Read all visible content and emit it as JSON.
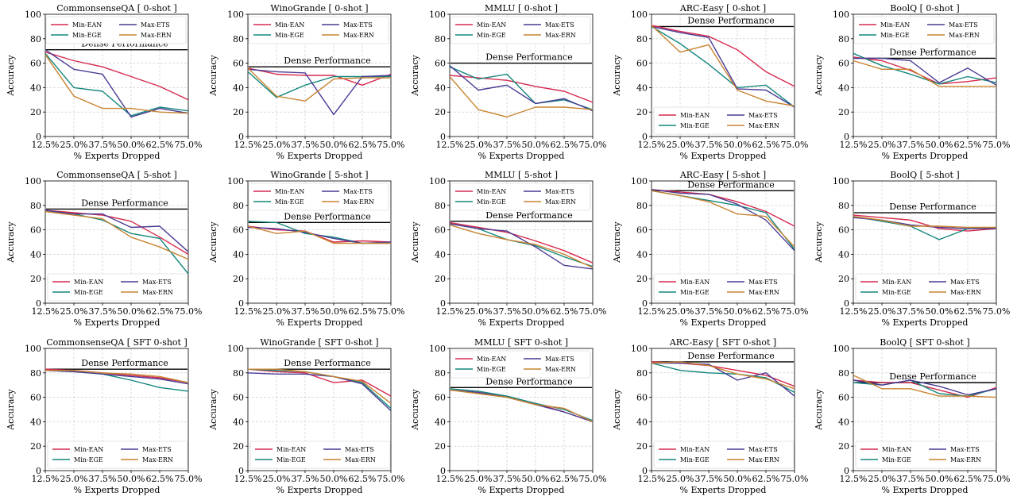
{
  "figure": {
    "x_tick_labels": [
      "12.5%",
      "25.0%",
      "37.5%",
      "50.0%",
      "62.5%",
      "75.0%"
    ],
    "xlabel": "% Experts Dropped",
    "ylabel": "Accuracy",
    "dense_label": "Dense Performance",
    "colors": {
      "Min-EAN": "#d62a4e",
      "Min-EGE": "#13877c",
      "Max-ETS": "#4a3a94",
      "Max-ERN": "#c98431",
      "dense": "#000000"
    }
  },
  "chart_data": [
    {
      "type": "line",
      "title": "CommonsenseQA [ 0-shot ]",
      "ylim": [
        0,
        100
      ],
      "dense": 71,
      "legend": "top-right",
      "grid": true,
      "categories": [
        "12.5%",
        "25.0%",
        "37.5%",
        "50.0%",
        "62.5%",
        "75.0%"
      ],
      "series": [
        {
          "name": "Min-EAN",
          "values": [
            69,
            62,
            57,
            49,
            41,
            30
          ]
        },
        {
          "name": "Min-EGE",
          "values": [
            68,
            40,
            37,
            17,
            24,
            21
          ]
        },
        {
          "name": "Max-ETS",
          "values": [
            71,
            55,
            51,
            16,
            23,
            19
          ]
        },
        {
          "name": "Max-ERN",
          "values": [
            67,
            33,
            23,
            23,
            20,
            19
          ]
        }
      ]
    },
    {
      "type": "line",
      "title": "WinoGrande [ 0-shot ]",
      "ylim": [
        0,
        100
      ],
      "dense": 57,
      "legend": "top-right",
      "grid": true,
      "categories": [
        "12.5%",
        "25.0%",
        "37.5%",
        "50.0%",
        "62.5%",
        "75.0%"
      ],
      "series": [
        {
          "name": "Min-EAN",
          "values": [
            56,
            51,
            50,
            50,
            42,
            51
          ]
        },
        {
          "name": "Min-EGE",
          "values": [
            53,
            32,
            42,
            49,
            49,
            49
          ]
        },
        {
          "name": "Max-ETS",
          "values": [
            55,
            53,
            52,
            18,
            49,
            50
          ]
        },
        {
          "name": "Max-ERN",
          "values": [
            56,
            33,
            29,
            47,
            48,
            48
          ]
        }
      ]
    },
    {
      "type": "line",
      "title": "MMLU [ 0-shot ]",
      "ylim": [
        0,
        100
      ],
      "dense": 60,
      "legend": "top-right",
      "grid": true,
      "categories": [
        "12.5%",
        "25.0%",
        "37.5%",
        "50.0%",
        "62.5%",
        "75.0%"
      ],
      "series": [
        {
          "name": "Min-EAN",
          "values": [
            50,
            48,
            46,
            41,
            37,
            28
          ]
        },
        {
          "name": "Min-EGE",
          "values": [
            57,
            47,
            51,
            27,
            30,
            22
          ]
        },
        {
          "name": "Max-ETS",
          "values": [
            58,
            38,
            42,
            27,
            31,
            21
          ]
        },
        {
          "name": "Max-ERN",
          "values": [
            49,
            22,
            16,
            24,
            24,
            22
          ]
        }
      ]
    },
    {
      "type": "line",
      "title": "ARC-Easy [ 0-shot ]",
      "ylim": [
        0,
        100
      ],
      "dense": 90,
      "legend": "bottom-left",
      "grid": true,
      "categories": [
        "12.5%",
        "25.0%",
        "37.5%",
        "50.0%",
        "62.5%",
        "75.0%"
      ],
      "series": [
        {
          "name": "Min-EAN",
          "values": [
            91,
            86,
            82,
            71,
            53,
            41
          ]
        },
        {
          "name": "Min-EGE",
          "values": [
            90,
            76,
            59,
            40,
            42,
            24
          ]
        },
        {
          "name": "Max-ETS",
          "values": [
            90,
            85,
            81,
            39,
            38,
            24
          ]
        },
        {
          "name": "Max-ERN",
          "values": [
            91,
            69,
            75,
            38,
            29,
            25
          ]
        }
      ]
    },
    {
      "type": "line",
      "title": "BoolQ [ 0-shot ]",
      "ylim": [
        0,
        100
      ],
      "dense": 64,
      "legend": "top-right",
      "grid": true,
      "categories": [
        "12.5%",
        "25.0%",
        "37.5%",
        "50.0%",
        "62.5%",
        "75.0%"
      ],
      "series": [
        {
          "name": "Min-EAN",
          "values": [
            65,
            62,
            54,
            43,
            45,
            48
          ]
        },
        {
          "name": "Min-EGE",
          "values": [
            68,
            58,
            51,
            43,
            49,
            44
          ]
        },
        {
          "name": "Max-ETS",
          "values": [
            64,
            64,
            62,
            44,
            56,
            42
          ]
        },
        {
          "name": "Max-ERN",
          "values": [
            62,
            55,
            55,
            41,
            41,
            41
          ]
        }
      ]
    },
    {
      "type": "line",
      "title": "CommonsenseQA [ 5-shot ]",
      "ylim": [
        0,
        100
      ],
      "dense": 77,
      "legend": "bottom-left",
      "grid": true,
      "categories": [
        "12.5%",
        "25.0%",
        "37.5%",
        "50.0%",
        "62.5%",
        "75.0%"
      ],
      "series": [
        {
          "name": "Min-EAN",
          "values": [
            76,
            74,
            72,
            67,
            54,
            40
          ]
        },
        {
          "name": "Min-EGE",
          "values": [
            75,
            73,
            68,
            57,
            53,
            24
          ]
        },
        {
          "name": "Max-ETS",
          "values": [
            76,
            73,
            73,
            62,
            63,
            42
          ]
        },
        {
          "name": "Max-ERN",
          "values": [
            75,
            72,
            69,
            54,
            46,
            36
          ]
        }
      ]
    },
    {
      "type": "line",
      "title": "WinoGrande [ 5-shot ]",
      "ylim": [
        0,
        100
      ],
      "dense": 66,
      "legend": "top-right",
      "grid": true,
      "categories": [
        "12.5%",
        "25.0%",
        "37.5%",
        "50.0%",
        "62.5%",
        "75.0%"
      ],
      "series": [
        {
          "name": "Min-EAN",
          "values": [
            63,
            60,
            59,
            50,
            51,
            50
          ]
        },
        {
          "name": "Min-EGE",
          "values": [
            67,
            66,
            57,
            54,
            49,
            49
          ]
        },
        {
          "name": "Max-ETS",
          "values": [
            62,
            61,
            58,
            53,
            49,
            50
          ]
        },
        {
          "name": "Max-ERN",
          "values": [
            63,
            57,
            59,
            49,
            49,
            49
          ]
        }
      ]
    },
    {
      "type": "line",
      "title": "MMLU [ 5-shot ]",
      "ylim": [
        0,
        100
      ],
      "dense": 67,
      "legend": "top-right",
      "grid": true,
      "categories": [
        "12.5%",
        "25.0%",
        "37.5%",
        "50.0%",
        "62.5%",
        "75.0%"
      ],
      "series": [
        {
          "name": "Min-EAN",
          "values": [
            66,
            62,
            58,
            51,
            43,
            33
          ]
        },
        {
          "name": "Min-EGE",
          "values": [
            65,
            61,
            52,
            47,
            38,
            30
          ]
        },
        {
          "name": "Max-ETS",
          "values": [
            65,
            61,
            59,
            46,
            31,
            28
          ]
        },
        {
          "name": "Max-ERN",
          "values": [
            64,
            57,
            52,
            48,
            40,
            29
          ]
        }
      ]
    },
    {
      "type": "line",
      "title": "ARC-Easy [ 5-shot ]",
      "ylim": [
        0,
        100
      ],
      "dense": 92,
      "legend": "bottom-left",
      "grid": true,
      "categories": [
        "12.5%",
        "25.0%",
        "37.5%",
        "50.0%",
        "62.5%",
        "75.0%"
      ],
      "series": [
        {
          "name": "Min-EAN",
          "values": [
            93,
            91,
            89,
            83,
            75,
            63
          ]
        },
        {
          "name": "Min-EGE",
          "values": [
            92,
            88,
            84,
            80,
            74,
            44
          ]
        },
        {
          "name": "Max-ETS",
          "values": [
            93,
            90,
            89,
            81,
            68,
            43
          ]
        },
        {
          "name": "Max-ERN",
          "values": [
            92,
            88,
            83,
            73,
            71,
            46
          ]
        }
      ]
    },
    {
      "type": "line",
      "title": "BoolQ [ 5-shot ]",
      "ylim": [
        0,
        100
      ],
      "dense": 74,
      "legend": "bottom-left",
      "grid": true,
      "categories": [
        "12.5%",
        "25.0%",
        "37.5%",
        "50.0%",
        "62.5%",
        "75.0%"
      ],
      "series": [
        {
          "name": "Min-EAN",
          "values": [
            72,
            70,
            68,
            61,
            59,
            61
          ]
        },
        {
          "name": "Min-EGE",
          "values": [
            71,
            67,
            63,
            52,
            61,
            62
          ]
        },
        {
          "name": "Max-ETS",
          "values": [
            70,
            68,
            64,
            62,
            61,
            61
          ]
        },
        {
          "name": "Max-ERN",
          "values": [
            71,
            68,
            63,
            63,
            62,
            62
          ]
        }
      ]
    },
    {
      "type": "line",
      "title": "CommonsenseQA [ SFT 0-shot ]",
      "ylim": [
        0,
        100
      ],
      "dense": 83,
      "legend": "bottom-left",
      "grid": true,
      "categories": [
        "12.5%",
        "25.0%",
        "37.5%",
        "50.0%",
        "62.5%",
        "75.0%"
      ],
      "series": [
        {
          "name": "Min-EAN",
          "values": [
            83,
            82,
            80,
            78,
            76,
            72
          ]
        },
        {
          "name": "Min-EGE",
          "values": [
            82,
            81,
            79,
            74,
            68,
            65
          ]
        },
        {
          "name": "Max-ETS",
          "values": [
            82,
            81,
            79,
            77,
            75,
            71
          ]
        },
        {
          "name": "Max-ERN",
          "values": [
            82,
            82,
            80,
            79,
            77,
            72
          ]
        }
      ]
    },
    {
      "type": "line",
      "title": "WinoGrande [ SFT 0-shot ]",
      "ylim": [
        0,
        100
      ],
      "dense": 83,
      "legend": "bottom-left",
      "grid": true,
      "categories": [
        "12.5%",
        "25.0%",
        "37.5%",
        "50.0%",
        "62.5%",
        "75.0%"
      ],
      "series": [
        {
          "name": "Min-EAN",
          "values": [
            83,
            81,
            80,
            72,
            74,
            61
          ]
        },
        {
          "name": "Min-EGE",
          "values": [
            83,
            82,
            81,
            77,
            72,
            51
          ]
        },
        {
          "name": "Max-ETS",
          "values": [
            80,
            79,
            79,
            77,
            71,
            49
          ]
        },
        {
          "name": "Max-ERN",
          "values": [
            83,
            83,
            81,
            77,
            73,
            55
          ]
        }
      ]
    },
    {
      "type": "line",
      "title": "MMLU [ SFT 0-shot ]",
      "ylim": [
        0,
        100
      ],
      "dense": 68,
      "legend": "top-right",
      "grid": true,
      "categories": [
        "12.5%",
        "25.0%",
        "37.5%",
        "50.0%",
        "62.5%",
        "75.0%"
      ],
      "series": [
        {
          "name": "Min-EAN",
          "values": [
            66,
            64,
            60,
            55,
            48,
            40
          ]
        },
        {
          "name": "Min-EGE",
          "values": [
            67,
            65,
            61,
            55,
            50,
            41
          ]
        },
        {
          "name": "Max-ETS",
          "values": [
            66,
            64,
            60,
            54,
            48,
            40
          ]
        },
        {
          "name": "Max-ERN",
          "values": [
            66,
            63,
            60,
            54,
            51,
            40
          ]
        }
      ]
    },
    {
      "type": "line",
      "title": "ARC-Easy [ SFT 0-shot ]",
      "ylim": [
        0,
        100
      ],
      "dense": 89,
      "legend": "bottom-left",
      "grid": true,
      "categories": [
        "12.5%",
        "25.0%",
        "37.5%",
        "50.0%",
        "62.5%",
        "75.0%"
      ],
      "series": [
        {
          "name": "Min-EAN",
          "values": [
            89,
            88,
            86,
            82,
            78,
            69
          ]
        },
        {
          "name": "Min-EGE",
          "values": [
            88,
            82,
            80,
            79,
            76,
            64
          ]
        },
        {
          "name": "Max-ETS",
          "values": [
            88,
            88,
            87,
            74,
            80,
            61
          ]
        },
        {
          "name": "Max-ERN",
          "values": [
            88,
            89,
            86,
            79,
            75,
            67
          ]
        }
      ]
    },
    {
      "type": "line",
      "title": "BoolQ [ SFT 0-shot ]",
      "ylim": [
        0,
        100
      ],
      "dense": 72,
      "legend": "bottom-left",
      "grid": true,
      "categories": [
        "12.5%",
        "25.0%",
        "37.5%",
        "50.0%",
        "62.5%",
        "75.0%"
      ],
      "series": [
        {
          "name": "Min-EAN",
          "values": [
            74,
            72,
            72,
            66,
            60,
            68
          ]
        },
        {
          "name": "Min-EGE",
          "values": [
            72,
            70,
            74,
            63,
            61,
            67
          ]
        },
        {
          "name": "Max-ETS",
          "values": [
            74,
            70,
            74,
            69,
            62,
            67
          ]
        },
        {
          "name": "Max-ERN",
          "values": [
            78,
            67,
            67,
            61,
            61,
            60
          ]
        }
      ]
    }
  ]
}
